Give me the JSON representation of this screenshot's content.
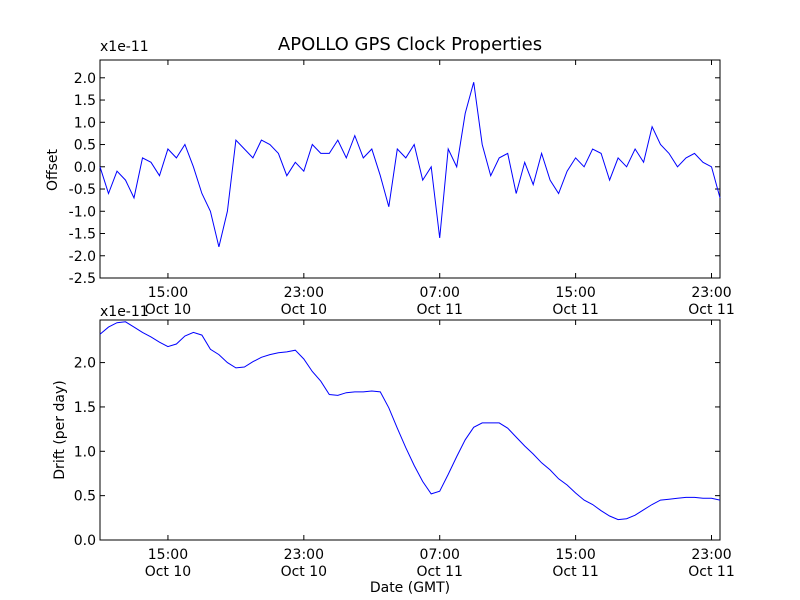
{
  "chart_data": [
    {
      "type": "line",
      "title": "APOLLO GPS Clock Properties",
      "ylabel": "Offset",
      "xlabel": "",
      "scale_label": "x1e-11",
      "ylim": [
        -2.5,
        2.4
      ],
      "yticks": [
        -2.5,
        -2.0,
        -1.5,
        -1.0,
        -0.5,
        0.0,
        0.5,
        1.0,
        1.5,
        2.0
      ],
      "ytick_labels": [
        "-2.5",
        "-2.0",
        "-1.5",
        "-1.0",
        "-0.5",
        "0.0",
        "0.5",
        "1.0",
        "1.5",
        "2.0"
      ],
      "xlim_hours": [
        11.0,
        47.5
      ],
      "xticks": [
        {
          "hours": 15,
          "time": "15:00",
          "date": "Oct 10"
        },
        {
          "hours": 23,
          "time": "23:00",
          "date": "Oct 10"
        },
        {
          "hours": 31,
          "time": "07:00",
          "date": "Oct 11"
        },
        {
          "hours": 39,
          "time": "15:00",
          "date": "Oct 11"
        },
        {
          "hours": 47,
          "time": "23:00",
          "date": "Oct 11"
        }
      ],
      "line_color": "#0000ff",
      "series": [
        {
          "x_hours": [
            11.0,
            11.5,
            12.0,
            12.5,
            13.0,
            13.5,
            14.0,
            14.5,
            15.0,
            15.5,
            16.0,
            16.5,
            17.0,
            17.5,
            18.0,
            18.5,
            19.0,
            19.5,
            20.0,
            20.5,
            21.0,
            21.5,
            22.0,
            22.5,
            23.0,
            23.5,
            24.0,
            24.5,
            25.0,
            25.5,
            26.0,
            26.5,
            27.0,
            27.5,
            28.0,
            28.5,
            29.0,
            29.5,
            30.0,
            30.5,
            31.0,
            31.5,
            32.0,
            32.5,
            33.0,
            33.5,
            34.0,
            34.5,
            35.0,
            35.5,
            36.0,
            36.5,
            37.0,
            37.5,
            38.0,
            38.5,
            39.0,
            39.5,
            40.0,
            40.5,
            41.0,
            41.5,
            42.0,
            42.5,
            43.0,
            43.5,
            44.0,
            44.5,
            45.0,
            45.5,
            46.0,
            46.5,
            47.0,
            47.5
          ],
          "values": [
            0.0,
            -0.6,
            -0.1,
            -0.3,
            -0.7,
            0.2,
            0.1,
            -0.2,
            0.4,
            0.2,
            0.5,
            0.0,
            -0.6,
            -1.0,
            -1.8,
            -1.0,
            0.6,
            0.4,
            0.2,
            0.6,
            0.5,
            0.3,
            -0.2,
            0.1,
            -0.1,
            0.5,
            0.3,
            0.3,
            0.6,
            0.2,
            0.7,
            0.2,
            0.4,
            -0.2,
            -0.9,
            0.4,
            0.2,
            0.5,
            -0.3,
            0.0,
            -1.6,
            0.4,
            0.0,
            1.2,
            1.9,
            0.5,
            -0.2,
            0.2,
            0.3,
            -0.6,
            0.1,
            -0.4,
            0.3,
            -0.3,
            -0.6,
            -0.1,
            0.2,
            0.0,
            0.4,
            0.3,
            -0.3,
            0.2,
            0.0,
            0.4,
            0.1,
            0.9,
            0.5,
            0.3,
            0.0,
            0.2,
            0.3,
            0.1,
            0.0,
            -0.7
          ]
        }
      ]
    },
    {
      "type": "line",
      "title": "",
      "ylabel": "Drift (per day)",
      "xlabel": "Date (GMT)",
      "scale_label": "x1e-11",
      "ylim": [
        0.0,
        2.48
      ],
      "yticks": [
        0.0,
        0.5,
        1.0,
        1.5,
        2.0
      ],
      "ytick_labels": [
        "0.0",
        "0.5",
        "1.0",
        "1.5",
        "2.0"
      ],
      "xlim_hours": [
        11.0,
        47.5
      ],
      "xticks": [
        {
          "hours": 15,
          "time": "15:00",
          "date": "Oct 10"
        },
        {
          "hours": 23,
          "time": "23:00",
          "date": "Oct 10"
        },
        {
          "hours": 31,
          "time": "07:00",
          "date": "Oct 11"
        },
        {
          "hours": 39,
          "time": "15:00",
          "date": "Oct 11"
        },
        {
          "hours": 47,
          "time": "23:00",
          "date": "Oct 11"
        }
      ],
      "line_color": "#0000ff",
      "series": [
        {
          "x_hours": [
            11.0,
            11.5,
            12.0,
            12.5,
            13.0,
            13.5,
            14.0,
            14.5,
            15.0,
            15.5,
            16.0,
            16.5,
            17.0,
            17.5,
            18.0,
            18.5,
            19.0,
            19.5,
            20.0,
            20.5,
            21.0,
            21.5,
            22.0,
            22.5,
            23.0,
            23.5,
            24.0,
            24.5,
            25.0,
            25.5,
            26.0,
            26.5,
            27.0,
            27.5,
            28.0,
            28.5,
            29.0,
            29.5,
            30.0,
            30.5,
            31.0,
            31.5,
            32.0,
            32.5,
            33.0,
            33.5,
            34.0,
            34.5,
            35.0,
            35.5,
            36.0,
            36.5,
            37.0,
            37.5,
            38.0,
            38.5,
            39.0,
            39.5,
            40.0,
            40.5,
            41.0,
            41.5,
            42.0,
            42.5,
            43.0,
            43.5,
            44.0,
            44.5,
            45.0,
            45.5,
            46.0,
            46.5,
            47.0,
            47.5
          ],
          "values": [
            2.32,
            2.4,
            2.45,
            2.46,
            2.4,
            2.34,
            2.29,
            2.23,
            2.18,
            2.21,
            2.3,
            2.34,
            2.31,
            2.15,
            2.09,
            2.0,
            1.94,
            1.95,
            2.01,
            2.06,
            2.09,
            2.11,
            2.12,
            2.14,
            2.04,
            1.9,
            1.79,
            1.64,
            1.63,
            1.66,
            1.67,
            1.67,
            1.68,
            1.67,
            1.49,
            1.26,
            1.04,
            0.84,
            0.66,
            0.52,
            0.55,
            0.74,
            0.94,
            1.13,
            1.27,
            1.32,
            1.32,
            1.32,
            1.26,
            1.16,
            1.06,
            0.97,
            0.87,
            0.79,
            0.69,
            0.62,
            0.53,
            0.45,
            0.4,
            0.33,
            0.27,
            0.23,
            0.24,
            0.28,
            0.34,
            0.4,
            0.45,
            0.46,
            0.47,
            0.48,
            0.48,
            0.47,
            0.47,
            0.45
          ]
        }
      ]
    }
  ]
}
